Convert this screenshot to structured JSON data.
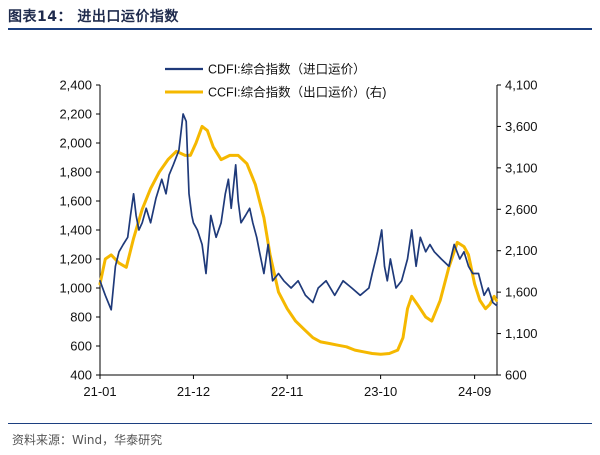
{
  "figure_title": "图表14：  进出口运价指数",
  "source": "资料来源：Wind，华泰研究",
  "chart_data": {
    "type": "line",
    "x_ticks": [
      "21-01",
      "21-12",
      "22-11",
      "23-10",
      "24-09"
    ],
    "x_tick_dates": [
      "2021-01-01",
      "2021-12-01",
      "2022-11-01",
      "2023-10-01",
      "2024-09-01"
    ],
    "x_range": [
      "2021-01-01",
      "2024-11-20"
    ],
    "y_left": {
      "min": 400,
      "max": 2400,
      "ticks": [
        "400",
        "600",
        "800",
        "1,000",
        "1,200",
        "1,400",
        "1,600",
        "1,800",
        "2,000",
        "2,200",
        "2,400"
      ]
    },
    "y_right": {
      "min": 600,
      "max": 4100,
      "ticks": [
        "600",
        "1,100",
        "1,600",
        "2,100",
        "2,600",
        "3,100",
        "3,600",
        "4,100"
      ]
    },
    "legend_placement": "top-center",
    "grid": false,
    "series": [
      {
        "name": "CDFI:综合指数（进口运价）",
        "axis": "left",
        "color": "#1f3a7a",
        "points": [
          [
            "2021-01-01",
            1050
          ],
          [
            "2021-01-20",
            950
          ],
          [
            "2021-02-10",
            850
          ],
          [
            "2021-02-25",
            1150
          ],
          [
            "2021-03-10",
            1250
          ],
          [
            "2021-03-25",
            1300
          ],
          [
            "2021-04-10",
            1350
          ],
          [
            "2021-04-20",
            1500
          ],
          [
            "2021-05-01",
            1650
          ],
          [
            "2021-05-10",
            1500
          ],
          [
            "2021-05-20",
            1400
          ],
          [
            "2021-06-01",
            1450
          ],
          [
            "2021-06-15",
            1550
          ],
          [
            "2021-07-01",
            1450
          ],
          [
            "2021-07-20",
            1620
          ],
          [
            "2021-08-10",
            1750
          ],
          [
            "2021-08-25",
            1650
          ],
          [
            "2021-09-05",
            1780
          ],
          [
            "2021-09-20",
            1850
          ],
          [
            "2021-10-10",
            1950
          ],
          [
            "2021-10-25",
            2200
          ],
          [
            "2021-11-05",
            2150
          ],
          [
            "2021-11-15",
            1650
          ],
          [
            "2021-11-25",
            1500
          ],
          [
            "2021-12-01",
            1450
          ],
          [
            "2021-12-15",
            1400
          ],
          [
            "2022-01-01",
            1300
          ],
          [
            "2022-01-15",
            1100
          ],
          [
            "2022-02-01",
            1500
          ],
          [
            "2022-02-20",
            1350
          ],
          [
            "2022-03-10",
            1450
          ],
          [
            "2022-03-25",
            1650
          ],
          [
            "2022-04-05",
            1750
          ],
          [
            "2022-04-15",
            1550
          ],
          [
            "2022-05-01",
            1850
          ],
          [
            "2022-05-10",
            1600
          ],
          [
            "2022-05-20",
            1450
          ],
          [
            "2022-06-05",
            1500
          ],
          [
            "2022-06-20",
            1550
          ],
          [
            "2022-07-01",
            1450
          ],
          [
            "2022-07-15",
            1350
          ],
          [
            "2022-07-25",
            1250
          ],
          [
            "2022-08-10",
            1100
          ],
          [
            "2022-08-25",
            1300
          ],
          [
            "2022-09-10",
            1050
          ],
          [
            "2022-10-01",
            1100
          ],
          [
            "2022-10-20",
            1050
          ],
          [
            "2022-11-15",
            1000
          ],
          [
            "2022-12-10",
            1050
          ],
          [
            "2023-01-05",
            950
          ],
          [
            "2023-02-01",
            900
          ],
          [
            "2023-02-20",
            1000
          ],
          [
            "2023-03-20",
            1050
          ],
          [
            "2023-04-20",
            950
          ],
          [
            "2023-05-20",
            1050
          ],
          [
            "2023-06-20",
            1000
          ],
          [
            "2023-07-20",
            950
          ],
          [
            "2023-08-20",
            1000
          ],
          [
            "2023-09-01",
            1100
          ],
          [
            "2023-09-20",
            1250
          ],
          [
            "2023-10-05",
            1400
          ],
          [
            "2023-10-15",
            1150
          ],
          [
            "2023-10-25",
            1050
          ],
          [
            "2023-11-05",
            1200
          ],
          [
            "2023-11-25",
            1000
          ],
          [
            "2023-12-15",
            1050
          ],
          [
            "2024-01-05",
            1200
          ],
          [
            "2024-01-20",
            1400
          ],
          [
            "2024-02-05",
            1150
          ],
          [
            "2024-02-20",
            1350
          ],
          [
            "2024-03-10",
            1250
          ],
          [
            "2024-03-25",
            1300
          ],
          [
            "2024-04-10",
            1250
          ],
          [
            "2024-05-05",
            1200
          ],
          [
            "2024-06-01",
            1150
          ],
          [
            "2024-06-20",
            1300
          ],
          [
            "2024-07-10",
            1200
          ],
          [
            "2024-07-25",
            1250
          ],
          [
            "2024-08-10",
            1150
          ],
          [
            "2024-08-25",
            1100
          ],
          [
            "2024-09-15",
            1100
          ],
          [
            "2024-10-05",
            950
          ],
          [
            "2024-10-20",
            1000
          ],
          [
            "2024-11-05",
            900
          ],
          [
            "2024-11-18",
            880
          ]
        ]
      },
      {
        "name": "CCFI:综合指数（出口运价）(右)",
        "axis": "right",
        "color": "#f5b800",
        "points": [
          [
            "2021-01-01",
            1700
          ],
          [
            "2021-01-20",
            2000
          ],
          [
            "2021-02-10",
            2050
          ],
          [
            "2021-03-10",
            1950
          ],
          [
            "2021-04-05",
            1900
          ],
          [
            "2021-05-01",
            2250
          ],
          [
            "2021-06-01",
            2600
          ],
          [
            "2021-07-01",
            2850
          ],
          [
            "2021-08-01",
            3050
          ],
          [
            "2021-09-01",
            3200
          ],
          [
            "2021-10-01",
            3300
          ],
          [
            "2021-11-01",
            3250
          ],
          [
            "2021-11-20",
            3250
          ],
          [
            "2021-12-10",
            3400
          ],
          [
            "2022-01-01",
            3600
          ],
          [
            "2022-01-20",
            3550
          ],
          [
            "2022-02-10",
            3350
          ],
          [
            "2022-03-10",
            3200
          ],
          [
            "2022-04-10",
            3250
          ],
          [
            "2022-05-10",
            3250
          ],
          [
            "2022-06-10",
            3150
          ],
          [
            "2022-07-10",
            2900
          ],
          [
            "2022-08-10",
            2500
          ],
          [
            "2022-09-01",
            2050
          ],
          [
            "2022-10-01",
            1600
          ],
          [
            "2022-11-01",
            1400
          ],
          [
            "2022-12-01",
            1250
          ],
          [
            "2023-01-01",
            1150
          ],
          [
            "2023-02-01",
            1050
          ],
          [
            "2023-03-01",
            1000
          ],
          [
            "2023-04-01",
            980
          ],
          [
            "2023-05-01",
            960
          ],
          [
            "2023-06-01",
            940
          ],
          [
            "2023-07-01",
            900
          ],
          [
            "2023-08-01",
            880
          ],
          [
            "2023-09-01",
            860
          ],
          [
            "2023-10-01",
            850
          ],
          [
            "2023-11-01",
            860
          ],
          [
            "2023-12-01",
            900
          ],
          [
            "2023-12-20",
            1050
          ],
          [
            "2024-01-05",
            1400
          ],
          [
            "2024-01-20",
            1550
          ],
          [
            "2024-02-10",
            1450
          ],
          [
            "2024-03-10",
            1300
          ],
          [
            "2024-04-01",
            1250
          ],
          [
            "2024-05-01",
            1500
          ],
          [
            "2024-06-01",
            1900
          ],
          [
            "2024-07-01",
            2200
          ],
          [
            "2024-07-25",
            2150
          ],
          [
            "2024-08-10",
            2050
          ],
          [
            "2024-09-01",
            1700
          ],
          [
            "2024-09-20",
            1500
          ],
          [
            "2024-10-10",
            1400
          ],
          [
            "2024-10-25",
            1450
          ],
          [
            "2024-11-10",
            1550
          ],
          [
            "2024-11-18",
            1500
          ]
        ]
      }
    ]
  }
}
